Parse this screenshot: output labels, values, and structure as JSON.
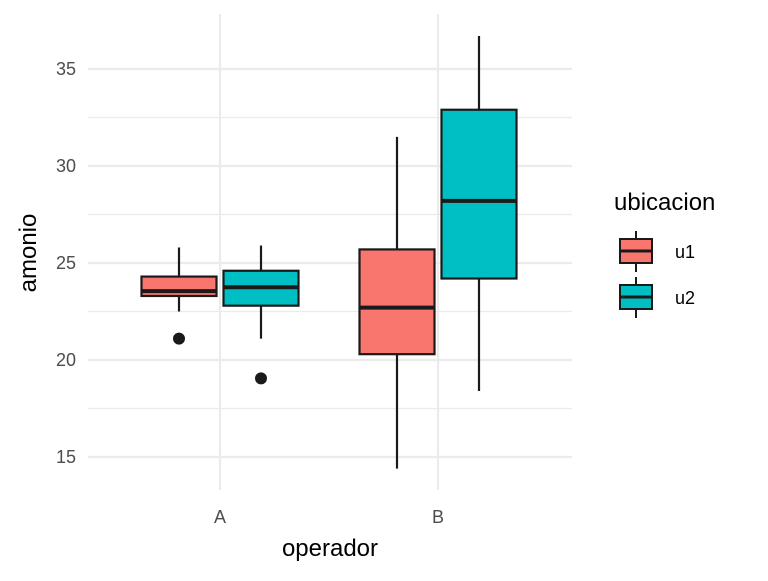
{
  "chart_data": {
    "type": "boxplot",
    "xlabel": "operador",
    "ylabel": "amonio",
    "categories": [
      "A",
      "B"
    ],
    "y_ticks": [
      15,
      20,
      25,
      30,
      35
    ],
    "ylim": [
      13.7,
      37.3
    ],
    "grid": true,
    "legend": {
      "title": "ubicacion",
      "position": "right",
      "entries": [
        "u1",
        "u2"
      ]
    },
    "series": [
      {
        "name": "u1",
        "color": "#F8766D",
        "boxes": [
          {
            "category": "A",
            "whisker_low": 22.5,
            "q1": 23.3,
            "median": 23.55,
            "q3": 24.3,
            "whisker_high": 25.8,
            "outliers": [
              21.1
            ]
          },
          {
            "category": "B",
            "whisker_low": 14.4,
            "q1": 20.3,
            "median": 22.7,
            "q3": 25.7,
            "whisker_high": 31.5,
            "outliers": []
          }
        ]
      },
      {
        "name": "u2",
        "color": "#00BFC4",
        "boxes": [
          {
            "category": "A",
            "whisker_low": 21.1,
            "q1": 22.8,
            "median": 23.75,
            "q3": 24.6,
            "whisker_high": 25.9,
            "outliers": [
              19.05
            ]
          },
          {
            "category": "B",
            "whisker_low": 18.4,
            "q1": 24.2,
            "median": 28.2,
            "q3": 32.9,
            "whisker_high": 36.7,
            "outliers": []
          }
        ]
      }
    ]
  }
}
